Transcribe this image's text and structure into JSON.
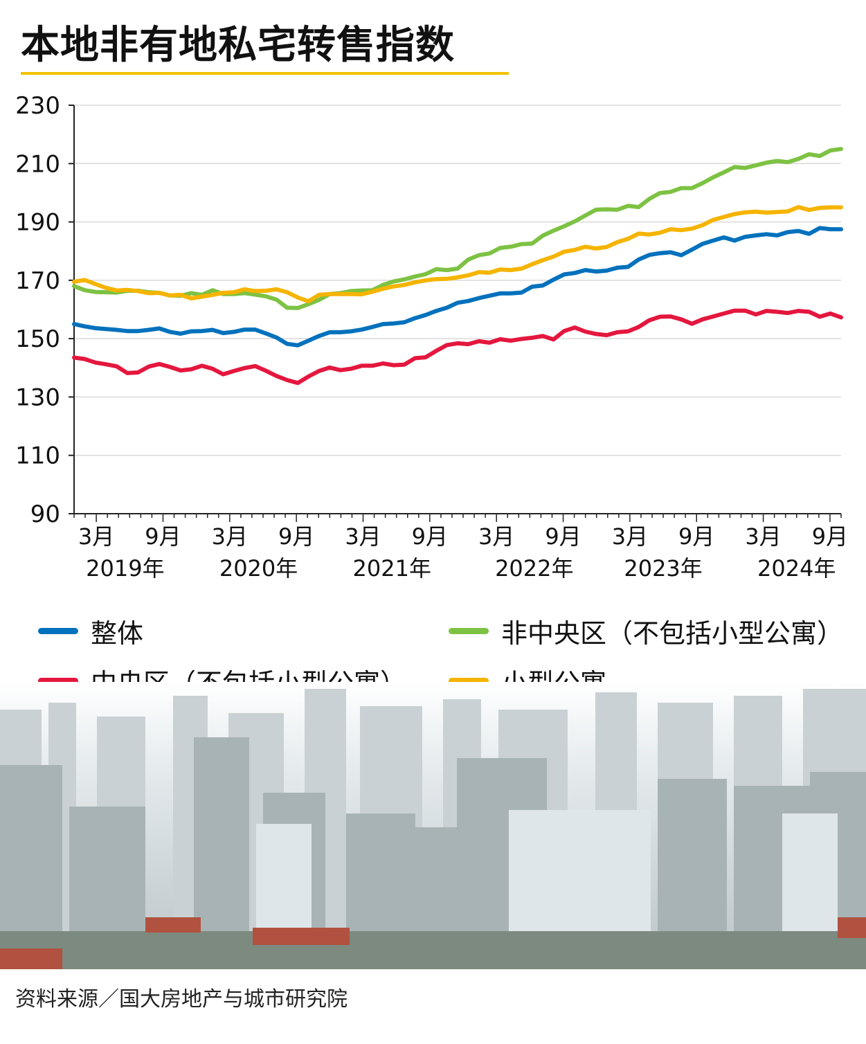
{
  "title": "本地非有地私宅转售指数",
  "source": "资料来源／国大房地产与城市研究院",
  "colors": {
    "title_rule": "#f2c200",
    "overall": "#0071bc",
    "central": "#e4173e",
    "non_central": "#7dc243",
    "small_units": "#f5b400"
  },
  "chart_data": {
    "type": "line",
    "title": "本地非有地私宅转售指数",
    "xlabel": "",
    "ylabel": "",
    "ylim": [
      90,
      230
    ],
    "y_ticks": [
      230,
      210,
      190,
      170,
      150,
      130,
      110,
      90
    ],
    "grid": true,
    "x_range": [
      0,
      69
    ],
    "x_ticks": [
      {
        "x": 2,
        "label": "3月"
      },
      {
        "x": 8,
        "label": "9月"
      },
      {
        "x": 14,
        "label": "3月"
      },
      {
        "x": 20,
        "label": "9月"
      },
      {
        "x": 26,
        "label": "3月"
      },
      {
        "x": 32,
        "label": "9月"
      },
      {
        "x": 38,
        "label": "3月"
      },
      {
        "x": 44,
        "label": "9月"
      },
      {
        "x": 50,
        "label": "3月"
      },
      {
        "x": 56,
        "label": "9月"
      },
      {
        "x": 62,
        "label": "3月"
      },
      {
        "x": 68,
        "label": "9月"
      }
    ],
    "year_labels": [
      {
        "x": 4.6,
        "label": "2019年"
      },
      {
        "x": 16.6,
        "label": "2020年"
      },
      {
        "x": 28.6,
        "label": "2021年"
      },
      {
        "x": 41.4,
        "label": "2022年"
      },
      {
        "x": 53,
        "label": "2023年"
      },
      {
        "x": 65,
        "label": "2024年"
      }
    ],
    "legend_placement": "below",
    "series": [
      {
        "name": "整体",
        "color": "#0071bc",
        "values": [
          155.0,
          154.2,
          153.6,
          153.3,
          153.0,
          152.6,
          152.6,
          153.0,
          153.5,
          152.3,
          151.7,
          152.5,
          152.6,
          153.0,
          151.9,
          152.3,
          153.1,
          153.1,
          151.8,
          150.4,
          148.2,
          147.7,
          149.3,
          150.9,
          152.2,
          152.2,
          152.5,
          153.1,
          154.0,
          155.0,
          155.2,
          155.6,
          157.0,
          158.1,
          159.5,
          160.6,
          162.3,
          162.9,
          163.9,
          164.7,
          165.5,
          165.5,
          165.8,
          167.8,
          168.2,
          170.2,
          172.0,
          172.5,
          173.5,
          173.0,
          173.3,
          174.3,
          174.6,
          177.1,
          178.7,
          179.3,
          179.6,
          178.6,
          180.5,
          182.5,
          183.6,
          184.7,
          183.6,
          184.9,
          185.4,
          185.8,
          185.4,
          186.5,
          186.9,
          185.9,
          187.9,
          187.5,
          187.5
        ],
        "x_start": 0,
        "x_step": 0.9583
      },
      {
        "name": "中央区（不包括小型公寓）",
        "color": "#e4173e",
        "values": [
          143.5,
          143.0,
          141.8,
          141.2,
          140.5,
          138.2,
          138.4,
          140.4,
          141.3,
          140.3,
          139.1,
          139.5,
          140.7,
          139.7,
          137.8,
          138.9,
          139.9,
          140.6,
          139.0,
          137.2,
          135.8,
          134.8,
          137.0,
          138.9,
          140.1,
          139.2,
          139.7,
          140.7,
          140.7,
          141.5,
          140.9,
          141.1,
          143.3,
          143.6,
          145.8,
          147.8,
          148.4,
          148.1,
          149.1,
          148.6,
          149.8,
          149.3,
          149.9,
          150.3,
          150.9,
          149.7,
          152.6,
          153.8,
          152.4,
          151.6,
          151.2,
          152.2,
          152.5,
          154.0,
          156.3,
          157.5,
          157.6,
          156.6,
          155.1,
          156.6,
          157.6,
          158.6,
          159.6,
          159.6,
          158.3,
          159.5,
          159.2,
          158.8,
          159.5,
          159.2,
          157.5,
          158.6,
          157.3
        ],
        "x_start": 0,
        "x_step": 0.9583
      },
      {
        "name": "非中央区（不包括小型公寓）",
        "color": "#7dc243",
        "values": [
          168.0,
          166.6,
          166.0,
          165.9,
          165.8,
          166.4,
          166.4,
          165.9,
          165.7,
          164.8,
          164.7,
          165.6,
          165.0,
          166.6,
          165.3,
          165.3,
          165.6,
          165.1,
          164.5,
          163.4,
          160.6,
          160.5,
          161.8,
          163.3,
          165.3,
          165.6,
          166.3,
          166.5,
          166.6,
          168.4,
          169.6,
          170.3,
          171.3,
          172.1,
          173.8,
          173.5,
          174.0,
          177.1,
          178.6,
          179.2,
          181.1,
          181.5,
          182.4,
          182.6,
          185.3,
          187.0,
          188.5,
          190.2,
          192.2,
          194.2,
          194.3,
          194.2,
          195.5,
          195.1,
          197.9,
          199.9,
          200.3,
          201.6,
          201.6,
          203.3,
          205.3,
          207.0,
          208.8,
          208.5,
          209.4,
          210.3,
          210.9,
          210.5,
          211.6,
          213.2,
          212.6,
          214.5,
          215.0
        ],
        "x_start": 0,
        "x_step": 0.9583
      },
      {
        "name": "小型公寓",
        "color": "#f5b400",
        "values": [
          169.5,
          170.1,
          168.7,
          167.4,
          166.5,
          166.7,
          166.3,
          165.6,
          165.7,
          164.8,
          165.0,
          163.8,
          164.4,
          165.0,
          165.7,
          165.9,
          166.9,
          166.3,
          166.4,
          166.9,
          165.9,
          164.1,
          162.8,
          165.0,
          165.3,
          165.3,
          165.3,
          165.2,
          166.1,
          167.1,
          167.9,
          168.4,
          169.3,
          170.0,
          170.4,
          170.5,
          171.0,
          171.7,
          172.8,
          172.6,
          173.7,
          173.5,
          174.0,
          175.5,
          176.9,
          178.1,
          179.8,
          180.4,
          181.5,
          180.9,
          181.4,
          183.1,
          184.2,
          186.0,
          185.7,
          186.3,
          187.5,
          187.2,
          187.7,
          188.9,
          190.7,
          191.7,
          192.7,
          193.3,
          193.5,
          193.2,
          193.4,
          193.6,
          195.1,
          194.1,
          194.8,
          195.0,
          195.0
        ],
        "x_start": 0,
        "x_step": 0.9583
      }
    ]
  },
  "legend": [
    {
      "label": "整体",
      "color": "#0071bc"
    },
    {
      "label": "非中央区（不包括小型公寓）",
      "color": "#7dc243"
    },
    {
      "label": "中央区（不包括小型公寓）",
      "color": "#e4173e"
    },
    {
      "label": "小型公寓",
      "color": "#f5b400"
    }
  ]
}
